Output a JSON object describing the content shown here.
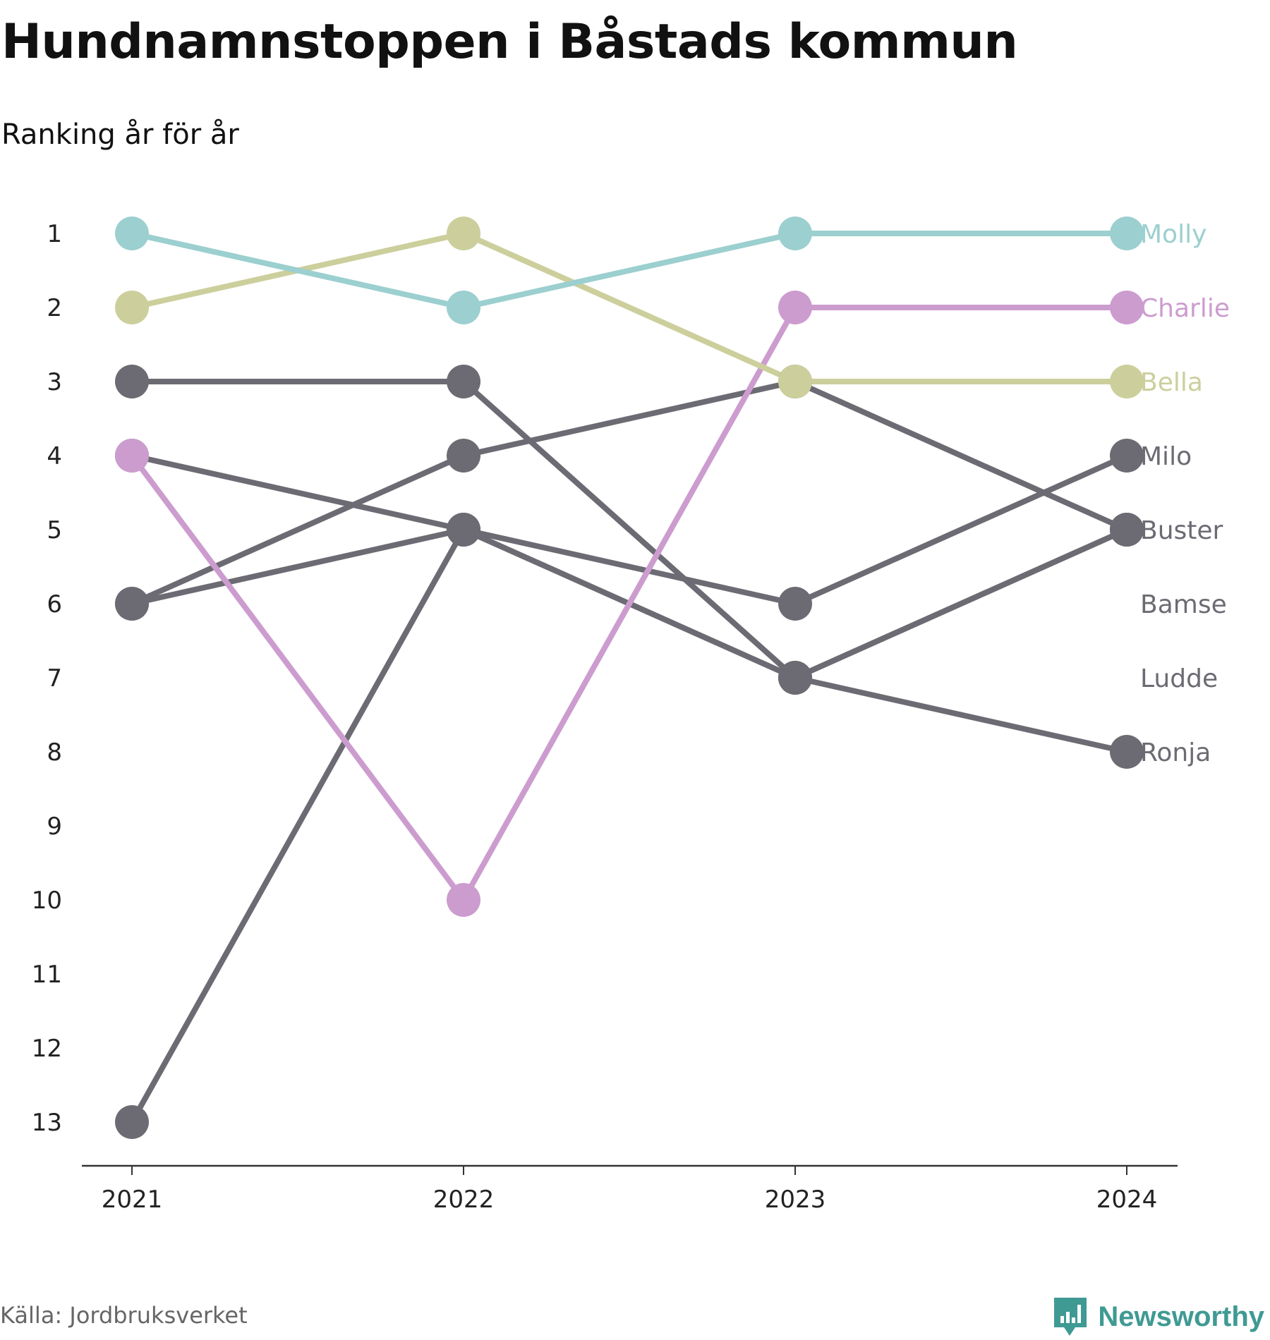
{
  "header": {
    "title": "Hundnamnstoppen i Båstads kommun",
    "subtitle": "Ranking år för år"
  },
  "chart_data": {
    "type": "line",
    "x": [
      "2021",
      "2022",
      "2023",
      "2024"
    ],
    "yticks": [
      "1",
      "2",
      "3",
      "4",
      "5",
      "6",
      "7",
      "8",
      "9",
      "10",
      "11",
      "12",
      "13"
    ],
    "ylim": [
      1,
      13
    ],
    "y_inverted": true,
    "grid": false,
    "series": [
      {
        "name": "Bamse",
        "color": "#6c6b73",
        "values": [
          6,
          4,
          3,
          5
        ]
      },
      {
        "name": "Ludde",
        "color": "#6c6b73",
        "values": [
          4,
          5,
          7,
          5
        ]
      },
      {
        "name": "Ronja",
        "color": "#6c6b73",
        "values": [
          13,
          5,
          7,
          8
        ]
      },
      {
        "name": "Milo",
        "color": "#6c6b73",
        "values": [
          6,
          5,
          6,
          4
        ]
      },
      {
        "name": "Buster",
        "color": "#6c6b73",
        "values": [
          3,
          3,
          7,
          5
        ]
      },
      {
        "name": "Charlie",
        "color": "#cc9ccf",
        "values": [
          4,
          10,
          2,
          2
        ]
      },
      {
        "name": "Bella",
        "color": "#cccf9c",
        "values": [
          2,
          1,
          3,
          3
        ]
      },
      {
        "name": "Molly",
        "color": "#9ccfcf",
        "values": [
          1,
          2,
          1,
          1
        ]
      }
    ],
    "end_labels": [
      {
        "name": "Molly",
        "rank": 1,
        "color": "#9ccfcf"
      },
      {
        "name": "Charlie",
        "rank": 2,
        "color": "#cc9ccf"
      },
      {
        "name": "Bella",
        "rank": 3,
        "color": "#cccf9c"
      },
      {
        "name": "Milo",
        "rank": 4,
        "color": "#6c6b73"
      },
      {
        "name": "Buster",
        "rank": 5,
        "color": "#6c6b73"
      },
      {
        "name": "Bamse",
        "rank": 6,
        "color": "#6c6b73"
      },
      {
        "name": "Ludde",
        "rank": 7,
        "color": "#6c6b73"
      },
      {
        "name": "Ronja",
        "rank": 8,
        "color": "#6c6b73"
      }
    ]
  },
  "footer": {
    "source": "Källa: Jordbruksverket",
    "brand": "Newsworthy",
    "brand_icon": "newsworthy-logo-icon",
    "brand_color": "#3f9a93"
  }
}
